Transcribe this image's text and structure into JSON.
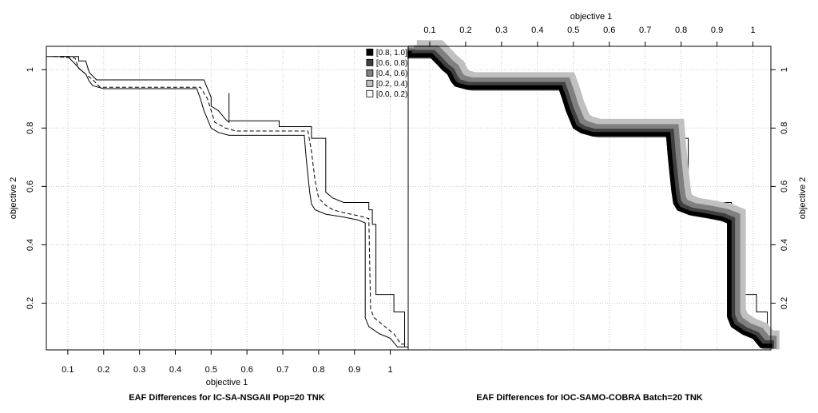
{
  "chart_data": [
    {
      "type": "line",
      "title": "EAF Differences for IC-SA-NSGAII Pop=20 TNK",
      "xlabel": "objective 1",
      "ylabel": "objective 2",
      "xlim": [
        0.04,
        1.05
      ],
      "ylim": [
        0.04,
        1.08
      ],
      "xticks": [
        0.1,
        0.2,
        0.3,
        0.4,
        0.5,
        0.6,
        0.7,
        0.8,
        0.9,
        1
      ],
      "yticks": [
        0.2,
        0.4,
        0.6,
        0.8,
        1
      ],
      "grid": true,
      "legend": {
        "placement": "top-right",
        "title": "",
        "entries": [
          {
            "label": "[0.8, 1.0]",
            "color": "#000000"
          },
          {
            "label": "[0.6, 0.8)",
            "color": "#404040"
          },
          {
            "label": "[0.4, 0.6)",
            "color": "#808080"
          },
          {
            "label": "[0.2, 0.4)",
            "color": "#c0c0c0"
          },
          {
            "label": "[0.0, 0.2)",
            "color": "#ffffff"
          }
        ]
      },
      "series": [
        {
          "style": "solid",
          "points": [
            [
              0.04,
              1.06
            ],
            [
              0.04,
              1.045
            ],
            [
              0.1,
              1.045
            ],
            [
              0.12,
              1.02
            ],
            [
              0.135,
              1.0
            ],
            [
              0.15,
              0.985
            ],
            [
              0.16,
              0.96
            ],
            [
              0.17,
              0.945
            ],
            [
              0.2,
              0.935
            ],
            [
              0.46,
              0.935
            ],
            [
              0.47,
              0.9
            ],
            [
              0.48,
              0.86
            ],
            [
              0.49,
              0.83
            ],
            [
              0.5,
              0.8
            ],
            [
              0.52,
              0.785
            ],
            [
              0.55,
              0.775
            ],
            [
              0.76,
              0.775
            ],
            [
              0.765,
              0.7
            ],
            [
              0.77,
              0.64
            ],
            [
              0.775,
              0.58
            ],
            [
              0.78,
              0.54
            ],
            [
              0.79,
              0.52
            ],
            [
              0.82,
              0.505
            ],
            [
              0.87,
              0.495
            ],
            [
              0.91,
              0.485
            ],
            [
              0.93,
              0.475
            ],
            [
              0.93,
              0.15
            ],
            [
              0.94,
              0.12
            ],
            [
              0.97,
              0.095
            ],
            [
              1.0,
              0.08
            ],
            [
              1.02,
              0.05
            ],
            [
              1.05,
              0.05
            ]
          ]
        },
        {
          "style": "dashed",
          "points": [
            [
              0.06,
              1.045
            ],
            [
              0.12,
              1.04
            ],
            [
              0.13,
              1.005
            ],
            [
              0.15,
              0.985
            ],
            [
              0.17,
              0.965
            ],
            [
              0.19,
              0.94
            ],
            [
              0.47,
              0.94
            ],
            [
              0.49,
              0.9
            ],
            [
              0.5,
              0.86
            ],
            [
              0.51,
              0.82
            ],
            [
              0.54,
              0.8
            ],
            [
              0.57,
              0.79
            ],
            [
              0.77,
              0.79
            ],
            [
              0.78,
              0.72
            ],
            [
              0.79,
              0.62
            ],
            [
              0.8,
              0.56
            ],
            [
              0.82,
              0.535
            ],
            [
              0.84,
              0.52
            ],
            [
              0.87,
              0.51
            ],
            [
              0.91,
              0.5
            ],
            [
              0.94,
              0.49
            ],
            [
              0.945,
              0.18
            ],
            [
              0.955,
              0.15
            ],
            [
              0.99,
              0.115
            ],
            [
              1.01,
              0.095
            ],
            [
              1.03,
              0.06
            ],
            [
              1.05,
              0.06
            ]
          ]
        },
        {
          "style": "solid",
          "points": [
            [
              0.08,
              1.045
            ],
            [
              0.13,
              1.045
            ],
            [
              0.13,
              1.03
            ],
            [
              0.15,
              1.03
            ],
            [
              0.16,
              0.99
            ],
            [
              0.18,
              0.965
            ],
            [
              0.2,
              0.965
            ],
            [
              0.48,
              0.965
            ],
            [
              0.5,
              0.905
            ],
            [
              0.5,
              0.875
            ],
            [
              0.52,
              0.86
            ],
            [
              0.54,
              0.83
            ],
            [
              0.55,
              0.82
            ],
            [
              0.55,
              0.92
            ],
            [
              0.55,
              0.825
            ],
            [
              0.69,
              0.825
            ],
            [
              0.69,
              0.805
            ],
            [
              0.78,
              0.805
            ],
            [
              0.78,
              0.765
            ],
            [
              0.82,
              0.765
            ],
            [
              0.82,
              0.58
            ],
            [
              0.84,
              0.56
            ],
            [
              0.87,
              0.545
            ],
            [
              0.94,
              0.545
            ],
            [
              0.94,
              0.52
            ],
            [
              0.95,
              0.52
            ],
            [
              0.95,
              0.47
            ],
            [
              0.96,
              0.47
            ],
            [
              0.96,
              0.23
            ],
            [
              1.01,
              0.23
            ],
            [
              1.01,
              0.17
            ],
            [
              1.04,
              0.17
            ],
            [
              1.04,
              0.05
            ]
          ]
        }
      ]
    },
    {
      "type": "area",
      "title": "EAF Differences for IOC-SAMO-COBRA Batch=20 TNK",
      "xlabel": "objective 1",
      "ylabel": "objective 2",
      "xlim": [
        0.04,
        1.05
      ],
      "ylim": [
        0.04,
        1.08
      ],
      "xticks": [
        0.1,
        0.2,
        0.3,
        0.4,
        0.5,
        0.6,
        0.7,
        0.8,
        0.9,
        1
      ],
      "yticks": [
        0.2,
        0.4,
        0.6,
        0.8,
        1
      ],
      "grid": true,
      "frontier": [
        [
          0.04,
          1.06
        ],
        [
          0.04,
          1.045
        ],
        [
          0.1,
          1.045
        ],
        [
          0.12,
          1.02
        ],
        [
          0.135,
          1.0
        ],
        [
          0.15,
          0.985
        ],
        [
          0.16,
          0.96
        ],
        [
          0.17,
          0.945
        ],
        [
          0.2,
          0.935
        ],
        [
          0.46,
          0.935
        ],
        [
          0.47,
          0.9
        ],
        [
          0.48,
          0.86
        ],
        [
          0.49,
          0.83
        ],
        [
          0.5,
          0.8
        ],
        [
          0.52,
          0.785
        ],
        [
          0.55,
          0.775
        ],
        [
          0.76,
          0.775
        ],
        [
          0.765,
          0.7
        ],
        [
          0.77,
          0.64
        ],
        [
          0.775,
          0.58
        ],
        [
          0.78,
          0.54
        ],
        [
          0.79,
          0.52
        ],
        [
          0.82,
          0.505
        ],
        [
          0.87,
          0.495
        ],
        [
          0.91,
          0.485
        ],
        [
          0.93,
          0.475
        ],
        [
          0.93,
          0.15
        ],
        [
          0.94,
          0.12
        ],
        [
          0.97,
          0.095
        ],
        [
          1.0,
          0.08
        ],
        [
          1.02,
          0.05
        ],
        [
          1.05,
          0.05
        ]
      ],
      "outer_boundary": [
        [
          0.08,
          1.045
        ],
        [
          0.13,
          1.045
        ],
        [
          0.13,
          1.03
        ],
        [
          0.15,
          1.03
        ],
        [
          0.16,
          0.99
        ],
        [
          0.18,
          0.965
        ],
        [
          0.2,
          0.965
        ],
        [
          0.48,
          0.965
        ],
        [
          0.5,
          0.905
        ],
        [
          0.5,
          0.875
        ],
        [
          0.52,
          0.86
        ],
        [
          0.54,
          0.83
        ],
        [
          0.55,
          0.825
        ],
        [
          0.69,
          0.825
        ],
        [
          0.69,
          0.805
        ],
        [
          0.78,
          0.805
        ],
        [
          0.78,
          0.765
        ],
        [
          0.82,
          0.765
        ],
        [
          0.82,
          0.58
        ],
        [
          0.84,
          0.56
        ],
        [
          0.87,
          0.545
        ],
        [
          0.94,
          0.545
        ],
        [
          0.94,
          0.52
        ],
        [
          0.95,
          0.52
        ],
        [
          0.95,
          0.47
        ],
        [
          0.96,
          0.47
        ],
        [
          0.96,
          0.23
        ],
        [
          1.01,
          0.23
        ],
        [
          1.01,
          0.17
        ],
        [
          1.04,
          0.17
        ],
        [
          1.04,
          0.05
        ]
      ],
      "bands": [
        {
          "level": "[0.8, 1.0]",
          "color": "#000000",
          "offset": 0.004
        },
        {
          "level": "[0.6, 0.8)",
          "color": "#404040",
          "offset": 0.009
        },
        {
          "level": "[0.4, 0.6)",
          "color": "#808080",
          "offset": 0.016
        },
        {
          "level": "[0.2, 0.4)",
          "color": "#c0c0c0",
          "offset": 0.024
        }
      ]
    }
  ]
}
